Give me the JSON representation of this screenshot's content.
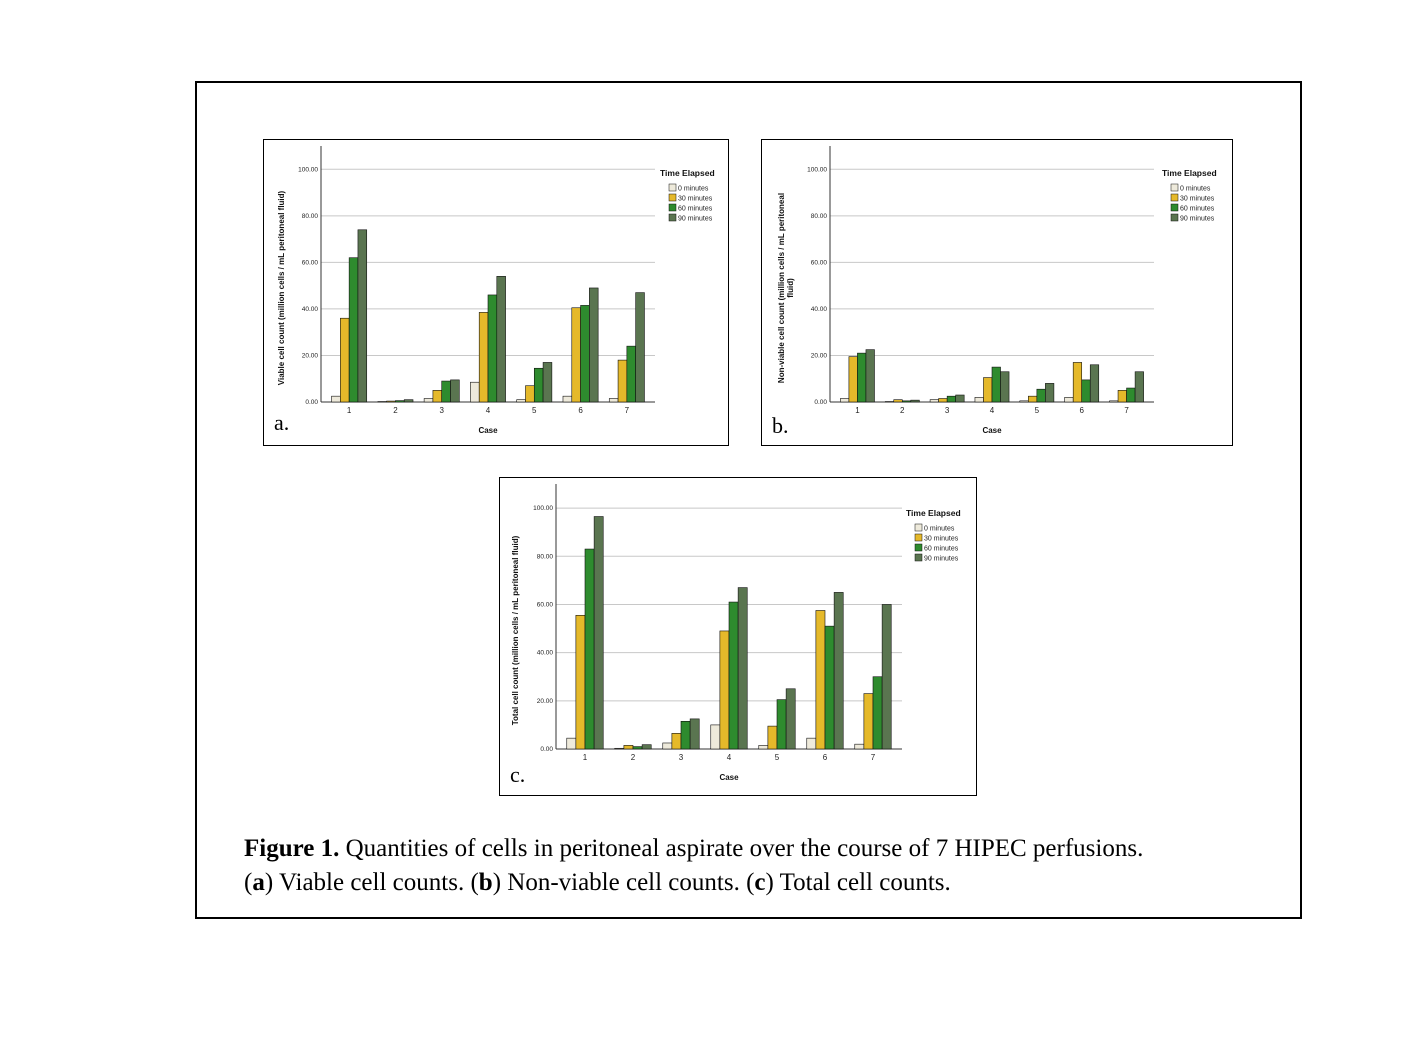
{
  "chart_data": [
    {
      "type": "bar",
      "panel_letter": "a.",
      "title": "",
      "xlabel": "Case",
      "ylabel": "Viable cell count (million cells / mL peritoneal fluid)",
      "ylim": [
        0,
        110
      ],
      "yticks": [
        "0.00",
        "20.00",
        "40.00",
        "60.00",
        "80.00",
        "100.00"
      ],
      "ytick_values": [
        0,
        20,
        40,
        60,
        80,
        100
      ],
      "grid": true,
      "legend_title": "Time Elapsed",
      "legend_position": "right",
      "categories": [
        "1",
        "2",
        "3",
        "4",
        "5",
        "6",
        "7"
      ],
      "series": [
        {
          "name": "0 minutes",
          "color": "#eeeadb",
          "values": [
            2.5,
            0.2,
            1.5,
            8.5,
            1.0,
            2.5,
            1.5
          ]
        },
        {
          "name": "30 minutes",
          "color": "#e5b92a",
          "values": [
            36,
            0.4,
            5,
            38.5,
            7,
            40.5,
            18
          ]
        },
        {
          "name": "60 minutes",
          "color": "#2e8b2e",
          "values": [
            62,
            0.6,
            9,
            46,
            14.5,
            41.5,
            24
          ]
        },
        {
          "name": "90 minutes",
          "color": "#5a7550",
          "values": [
            74,
            1.0,
            9.5,
            54,
            17,
            49,
            47
          ]
        }
      ]
    },
    {
      "type": "bar",
      "panel_letter": "b.",
      "title": "",
      "xlabel": "Case",
      "ylabel": "Non-viable cell count (million cells / mL peritoneal fluid)",
      "ylabel_lines": [
        "Non-viable cell count (million cells / mL peritoneal",
        "fluid)"
      ],
      "ylim": [
        0,
        110
      ],
      "yticks": [
        "0.00",
        "20.00",
        "40.00",
        "60.00",
        "80.00",
        "100.00"
      ],
      "ytick_values": [
        0,
        20,
        40,
        60,
        80,
        100
      ],
      "grid": true,
      "legend_title": "Time Elapsed",
      "legend_position": "right",
      "categories": [
        "1",
        "2",
        "3",
        "4",
        "5",
        "6",
        "7"
      ],
      "series": [
        {
          "name": "0 minutes",
          "color": "#eeeadb",
          "values": [
            1.5,
            0.2,
            1.0,
            2.0,
            0.5,
            2.0,
            0.5
          ]
        },
        {
          "name": "30 minutes",
          "color": "#e5b92a",
          "values": [
            19.5,
            1.0,
            1.5,
            10.5,
            2.5,
            17,
            5
          ]
        },
        {
          "name": "60 minutes",
          "color": "#2e8b2e",
          "values": [
            21,
            0.5,
            2.5,
            15,
            5.5,
            9.5,
            6
          ]
        },
        {
          "name": "90 minutes",
          "color": "#5a7550",
          "values": [
            22.5,
            0.8,
            3.0,
            13,
            8,
            16,
            13
          ]
        }
      ]
    },
    {
      "type": "bar",
      "panel_letter": "c.",
      "title": "",
      "xlabel": "Case",
      "ylabel": "Total cell count (million cells / mL peritoneal fluid)",
      "ylim": [
        0,
        110
      ],
      "yticks": [
        "0.00",
        "20.00",
        "40.00",
        "60.00",
        "80.00",
        "100.00"
      ],
      "ytick_values": [
        0,
        20,
        40,
        60,
        80,
        100
      ],
      "grid": true,
      "legend_title": "Time Elapsed",
      "legend_position": "right",
      "categories": [
        "1",
        "2",
        "3",
        "4",
        "5",
        "6",
        "7"
      ],
      "series": [
        {
          "name": "0 minutes",
          "color": "#eeeadb",
          "values": [
            4.5,
            0.3,
            2.5,
            10,
            1.5,
            4.5,
            2
          ]
        },
        {
          "name": "30 minutes",
          "color": "#e5b92a",
          "values": [
            55.5,
            1.5,
            6.5,
            49,
            9.5,
            57.5,
            23
          ]
        },
        {
          "name": "60 minutes",
          "color": "#2e8b2e",
          "values": [
            83,
            1.0,
            11.5,
            61,
            20.5,
            51,
            30
          ]
        },
        {
          "name": "90 minutes",
          "color": "#5a7550",
          "values": [
            96.5,
            1.8,
            12.5,
            67,
            25,
            65,
            60
          ]
        }
      ]
    }
  ],
  "caption": {
    "label": "Figure 1.",
    "line1_rest": " Quantities of cells in peritoneal aspirate over the course of 7 HIPEC perfusions.",
    "a_open": "(",
    "a_letter": "a",
    "a_text": ") Viable cell counts. (",
    "b_letter": "b",
    "b_text": ") Non-viable cell counts. (",
    "c_letter": "c",
    "c_text": ") Total cell counts."
  }
}
